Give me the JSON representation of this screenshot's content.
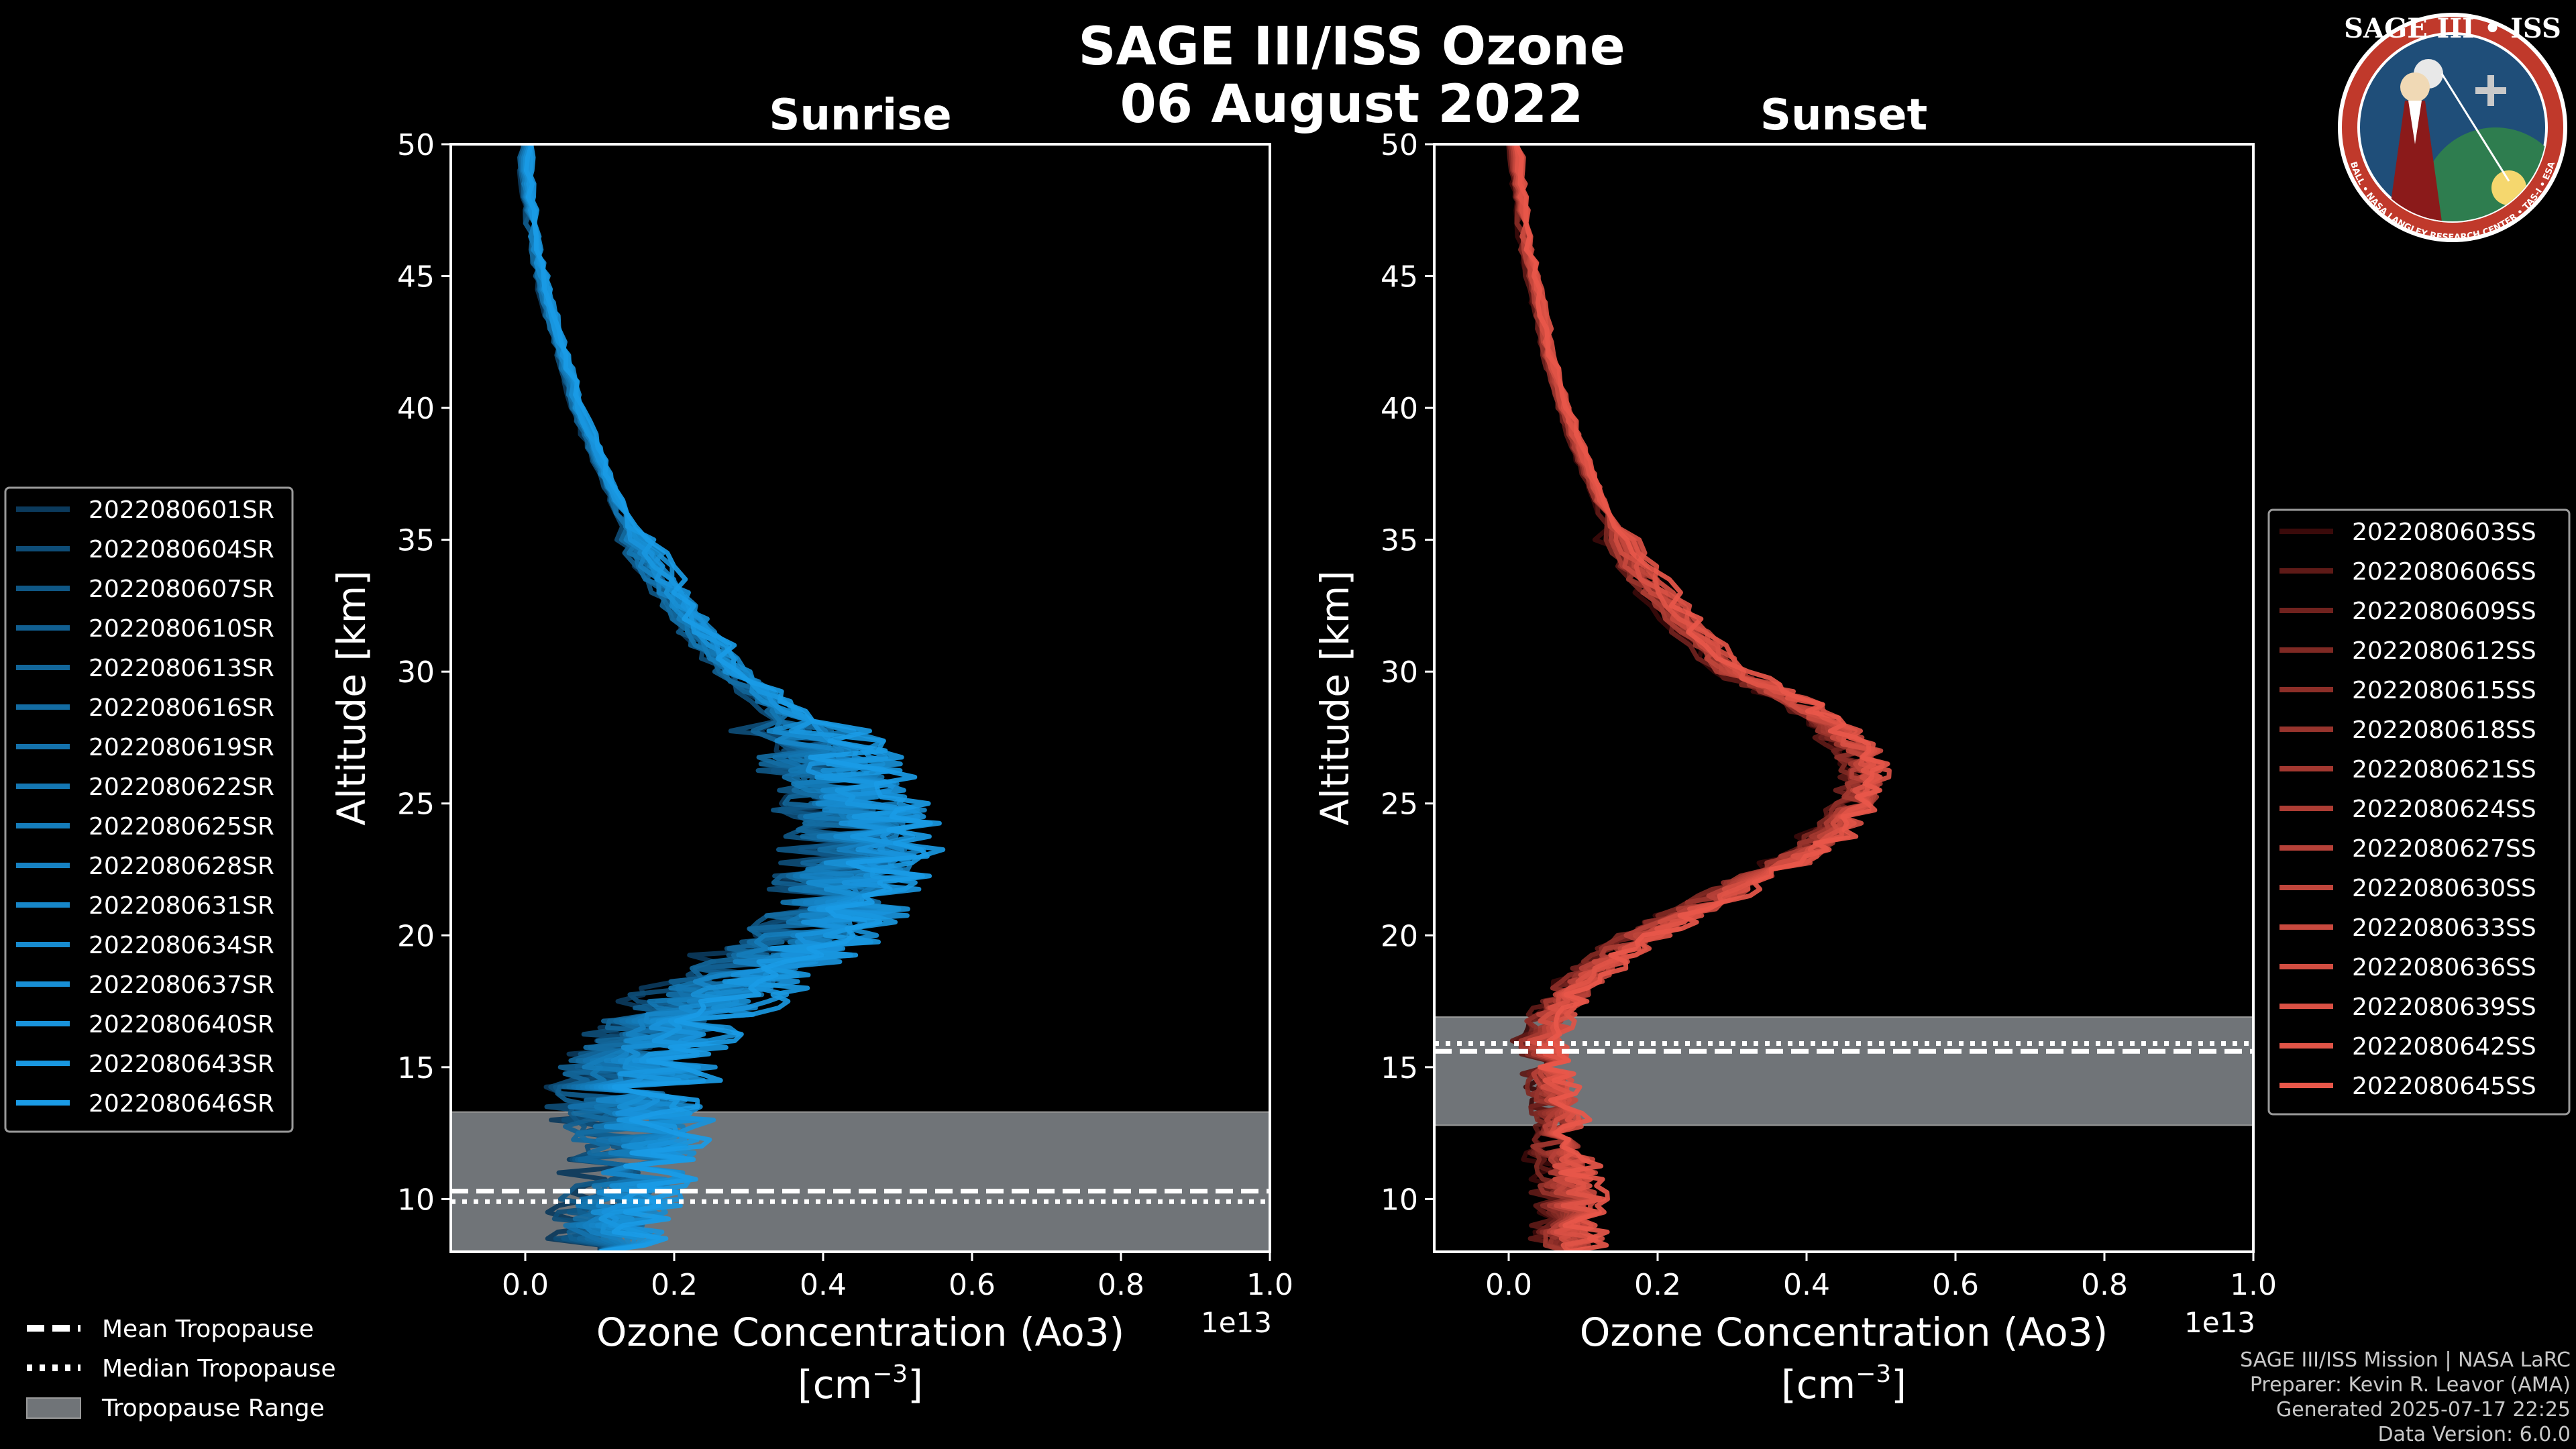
{
  "title": {
    "line1": "SAGE III/ISS Ozone",
    "line2": "06 August 2022"
  },
  "logo": {
    "title": "SAGE III • ISS",
    "ring_text": "BALL • NASA LANGLEY RESEARCH CENTER • TAS-I • ESA",
    "colors": {
      "ring": "#c0392b",
      "field": "#1f4e79"
    }
  },
  "credits": {
    "line1": "SAGE III/ISS Mission | NASA LaRC",
    "line2": "Preparer: Kevin R. Leavor (AMA)",
    "line3": "Generated 2025-07-17 22:25",
    "line4": "Data Version: 6.0.0"
  },
  "shared_legend": {
    "mean": "Mean Tropopause",
    "median": "Median Tropopause",
    "range": "Tropopause Range"
  },
  "chart_data": [
    {
      "type": "line",
      "title": "Sunrise",
      "xlabel": "Ozone Concentration (Ao3)",
      "xunit": "[cm",
      "xunit_sup": "−3",
      "xunit_close": "]",
      "ylabel": "Altitude [km]",
      "offset_label": "1e13",
      "xlim": [
        -0.1,
        1.0
      ],
      "ylim": [
        8,
        50
      ],
      "xticks": [
        "0.0",
        "0.2",
        "0.4",
        "0.6",
        "0.8",
        "1.0"
      ],
      "xtick_values": [
        0.0,
        0.2,
        0.4,
        0.6,
        0.8,
        1.0
      ],
      "yticks": [
        "10",
        "15",
        "20",
        "25",
        "30",
        "35",
        "40",
        "45",
        "50"
      ],
      "ytick_values": [
        10,
        15,
        20,
        25,
        30,
        35,
        40,
        45,
        50
      ],
      "color_dark": "#0b3a5c",
      "color_light": "#1a9be6",
      "tropopause": {
        "mean": 10.3,
        "median": 9.9,
        "range": [
          8,
          13.3
        ]
      },
      "mean_profile": [
        [
          0.0,
          50
        ],
        [
          0.005,
          48
        ],
        [
          0.015,
          46
        ],
        [
          0.03,
          44
        ],
        [
          0.05,
          42
        ],
        [
          0.07,
          40
        ],
        [
          0.1,
          38
        ],
        [
          0.13,
          36
        ],
        [
          0.17,
          34
        ],
        [
          0.22,
          32
        ],
        [
          0.28,
          30
        ],
        [
          0.35,
          28.5
        ],
        [
          0.4,
          27
        ],
        [
          0.42,
          26
        ],
        [
          0.44,
          25
        ],
        [
          0.46,
          24
        ],
        [
          0.45,
          23
        ],
        [
          0.43,
          22
        ],
        [
          0.42,
          21
        ],
        [
          0.39,
          20
        ],
        [
          0.33,
          19
        ],
        [
          0.27,
          18
        ],
        [
          0.22,
          17
        ],
        [
          0.18,
          16
        ],
        [
          0.15,
          15
        ],
        [
          0.14,
          14
        ],
        [
          0.15,
          13
        ],
        [
          0.16,
          12
        ],
        [
          0.14,
          11
        ],
        [
          0.13,
          10
        ],
        [
          0.12,
          9
        ],
        [
          0.1,
          8
        ]
      ],
      "series": [
        {
          "name": "2022080601SR"
        },
        {
          "name": "2022080604SR"
        },
        {
          "name": "2022080607SR"
        },
        {
          "name": "2022080610SR"
        },
        {
          "name": "2022080613SR"
        },
        {
          "name": "2022080616SR"
        },
        {
          "name": "2022080619SR"
        },
        {
          "name": "2022080622SR"
        },
        {
          "name": "2022080625SR"
        },
        {
          "name": "2022080628SR"
        },
        {
          "name": "2022080631SR"
        },
        {
          "name": "2022080634SR"
        },
        {
          "name": "2022080637SR"
        },
        {
          "name": "2022080640SR"
        },
        {
          "name": "2022080643SR"
        },
        {
          "name": "2022080646SR"
        }
      ]
    },
    {
      "type": "line",
      "title": "Sunset",
      "xlabel": "Ozone Concentration (Ao3)",
      "xunit": "[cm",
      "xunit_sup": "−3",
      "xunit_close": "]",
      "ylabel": "Altitude [km]",
      "offset_label": "1e13",
      "xlim": [
        -0.1,
        1.0
      ],
      "ylim": [
        8,
        50
      ],
      "xticks": [
        "0.0",
        "0.2",
        "0.4",
        "0.6",
        "0.8",
        "1.0"
      ],
      "xtick_values": [
        0.0,
        0.2,
        0.4,
        0.6,
        0.8,
        1.0
      ],
      "yticks": [
        "10",
        "15",
        "20",
        "25",
        "30",
        "35",
        "40",
        "45",
        "50"
      ],
      "ytick_values": [
        10,
        15,
        20,
        25,
        30,
        35,
        40,
        45,
        50
      ],
      "color_dark": "#3a0a0a",
      "color_light": "#e8574a",
      "tropopause": {
        "mean": 15.6,
        "median": 15.9,
        "range": [
          12.8,
          16.9
        ]
      },
      "mean_profile": [
        [
          0.01,
          50
        ],
        [
          0.015,
          48
        ],
        [
          0.025,
          46
        ],
        [
          0.04,
          44
        ],
        [
          0.055,
          42
        ],
        [
          0.075,
          40
        ],
        [
          0.1,
          38
        ],
        [
          0.13,
          36
        ],
        [
          0.17,
          34
        ],
        [
          0.23,
          32
        ],
        [
          0.3,
          30
        ],
        [
          0.38,
          29
        ],
        [
          0.43,
          28
        ],
        [
          0.47,
          27
        ],
        [
          0.48,
          26
        ],
        [
          0.47,
          25
        ],
        [
          0.44,
          24
        ],
        [
          0.39,
          23
        ],
        [
          0.32,
          22
        ],
        [
          0.25,
          21
        ],
        [
          0.18,
          20
        ],
        [
          0.13,
          19
        ],
        [
          0.09,
          18
        ],
        [
          0.06,
          17
        ],
        [
          0.04,
          16
        ],
        [
          0.05,
          15
        ],
        [
          0.06,
          14
        ],
        [
          0.07,
          13
        ],
        [
          0.07,
          12
        ],
        [
          0.08,
          11
        ],
        [
          0.08,
          10
        ],
        [
          0.08,
          9
        ],
        [
          0.08,
          8
        ]
      ],
      "series": [
        {
          "name": "2022080603SS"
        },
        {
          "name": "2022080606SS"
        },
        {
          "name": "2022080609SS"
        },
        {
          "name": "2022080612SS"
        },
        {
          "name": "2022080615SS"
        },
        {
          "name": "2022080618SS"
        },
        {
          "name": "2022080621SS"
        },
        {
          "name": "2022080624SS"
        },
        {
          "name": "2022080627SS"
        },
        {
          "name": "2022080630SS"
        },
        {
          "name": "2022080633SS"
        },
        {
          "name": "2022080636SS"
        },
        {
          "name": "2022080639SS"
        },
        {
          "name": "2022080642SS"
        },
        {
          "name": "2022080645SS"
        }
      ]
    }
  ]
}
